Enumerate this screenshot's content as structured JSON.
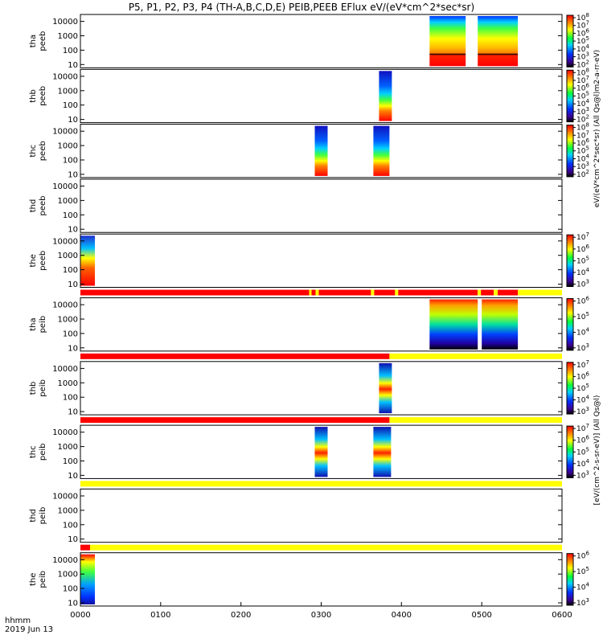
{
  "chart_data": {
    "type": "heatmap",
    "title": "P5, P1, P2, P3, P4 (TH-A,B,C,D,E) PEIB,PEEB EFlux eV/(eV*cm^2*sec*sr)",
    "x_axis": {
      "prefix": "hhmm",
      "date": "2019 Jun 13",
      "range_hours": [
        0,
        6
      ],
      "ticks": [
        "0000",
        "0100",
        "0200",
        "0300",
        "0400",
        "0500",
        "0600"
      ]
    },
    "y_ticks": [
      "10",
      "100",
      "1000",
      "10000"
    ],
    "y_range_ev": [
      6,
      30000
    ],
    "y_scale": "log",
    "colorbar_label_electrons": "eV/(eV*cm^2*sec*sr) (All Qs@l)m2-a-rr-eV)",
    "colorbar_label_ions": "[eV/(cm^2-s-sr-eV)] (All Qs@l)",
    "panels": [
      {
        "id": "tha-peeb",
        "line1": "tha",
        "line2": "peeb",
        "blocks": [
          {
            "start": 4.35,
            "end": 4.8,
            "profile": "tha_e"
          },
          {
            "start": 4.95,
            "end": 5.45,
            "profile": "tha_e"
          }
        ],
        "colorbar": {
          "ticks": [
            "10^2",
            "10^3",
            "10^4",
            "10^5",
            "10^6",
            "10^7",
            "10^8"
          ]
        }
      },
      {
        "id": "thb-peeb",
        "line1": "thb",
        "line2": "peeb",
        "blocks": [
          {
            "start": 3.72,
            "end": 3.88,
            "profile": "mid_e"
          }
        ],
        "colorbar": {
          "ticks": [
            "10^2",
            "10^3",
            "10^4",
            "10^5",
            "10^6",
            "10^7",
            "10^8"
          ]
        }
      },
      {
        "id": "thc-peeb",
        "line1": "thc",
        "line2": "peeb",
        "blocks": [
          {
            "start": 2.92,
            "end": 3.08,
            "profile": "mid_e"
          },
          {
            "start": 3.65,
            "end": 3.85,
            "profile": "mid_e"
          }
        ],
        "colorbar": {
          "ticks": [
            "10^2",
            "10^3",
            "10^4",
            "10^5",
            "10^6",
            "10^7",
            "10^8"
          ]
        }
      },
      {
        "id": "thd-peeb",
        "line1": "thd",
        "line2": "peeb",
        "blocks": [],
        "colorbar": null
      },
      {
        "id": "the-peeb",
        "line1": "the",
        "line2": "peeb",
        "blocks": [
          {
            "start": 0.0,
            "end": 0.18,
            "profile": "the_e"
          }
        ],
        "colorbar": {
          "ticks": [
            "10^3",
            "10^4",
            "10^5",
            "10^6",
            "10^7"
          ]
        }
      },
      {
        "id": "tha-peib",
        "line1": "tha",
        "line2": "peib",
        "blocks": [
          {
            "start": 4.35,
            "end": 4.95,
            "profile": "tha_i"
          },
          {
            "start": 5.0,
            "end": 5.45,
            "profile": "tha_i"
          }
        ],
        "colorbar": {
          "ticks": [
            "10^3",
            "10^4",
            "10^5",
            "10^6"
          ]
        }
      },
      {
        "id": "thb-peib",
        "line1": "thb",
        "line2": "peib",
        "blocks": [
          {
            "start": 3.72,
            "end": 3.88,
            "profile": "mid_i"
          }
        ],
        "colorbar": {
          "ticks": [
            "10^3",
            "10^4",
            "10^5",
            "10^6",
            "10^7"
          ]
        }
      },
      {
        "id": "thc-peib",
        "line1": "thc",
        "line2": "peib",
        "blocks": [
          {
            "start": 2.92,
            "end": 3.08,
            "profile": "mid_i"
          },
          {
            "start": 3.65,
            "end": 3.87,
            "profile": "mid_i"
          }
        ],
        "colorbar": {
          "ticks": [
            "10^3",
            "10^4",
            "10^5",
            "10^6",
            "10^7"
          ]
        }
      },
      {
        "id": "thd-peib",
        "line1": "thd",
        "line2": "peib",
        "blocks": [],
        "colorbar": null
      },
      {
        "id": "the-peib",
        "line1": "the",
        "line2": "peib",
        "blocks": [
          {
            "start": 0.0,
            "end": 0.18,
            "profile": "the_i"
          }
        ],
        "colorbar": {
          "ticks": [
            "10^3",
            "10^4",
            "10^5",
            "10^6"
          ]
        }
      }
    ],
    "mode_bars": [
      {
        "after_panel": 4,
        "segments": [
          {
            "start": 0.0,
            "end": 2.85,
            "color": "#ff0000"
          },
          {
            "start": 2.85,
            "end": 2.88,
            "color": "#ffff00"
          },
          {
            "start": 2.88,
            "end": 2.93,
            "color": "#ff0000"
          },
          {
            "start": 2.93,
            "end": 2.97,
            "color": "#ffff00"
          },
          {
            "start": 2.97,
            "end": 3.62,
            "color": "#ff0000"
          },
          {
            "start": 3.62,
            "end": 3.66,
            "color": "#ffff00"
          },
          {
            "start": 3.66,
            "end": 3.92,
            "color": "#ff0000"
          },
          {
            "start": 3.92,
            "end": 3.96,
            "color": "#ffff00"
          },
          {
            "start": 3.96,
            "end": 4.95,
            "color": "#ff0000"
          },
          {
            "start": 4.95,
            "end": 4.99,
            "color": "#ffff00"
          },
          {
            "start": 4.99,
            "end": 5.15,
            "color": "#ff0000"
          },
          {
            "start": 5.15,
            "end": 5.2,
            "color": "#ffff00"
          },
          {
            "start": 5.2,
            "end": 5.45,
            "color": "#ff0000"
          },
          {
            "start": 5.45,
            "end": 6.0,
            "color": "#ffff00"
          }
        ]
      },
      {
        "after_panel": 5,
        "segments": [
          {
            "start": 0.0,
            "end": 3.85,
            "color": "#ff0000"
          },
          {
            "start": 3.85,
            "end": 6.0,
            "color": "#ffff00"
          }
        ]
      },
      {
        "after_panel": 6,
        "segments": [
          {
            "start": 0.0,
            "end": 3.85,
            "color": "#ff0000"
          },
          {
            "start": 3.85,
            "end": 6.0,
            "color": "#ffff00"
          }
        ]
      },
      {
        "after_panel": 7,
        "segments": [
          {
            "start": 0.0,
            "end": 6.0,
            "color": "#ffff00"
          }
        ]
      },
      {
        "after_panel": 8,
        "segments": [
          {
            "start": 0.0,
            "end": 0.12,
            "color": "#ff0000"
          },
          {
            "start": 0.12,
            "end": 6.0,
            "color": "#ffff00"
          }
        ]
      }
    ]
  }
}
